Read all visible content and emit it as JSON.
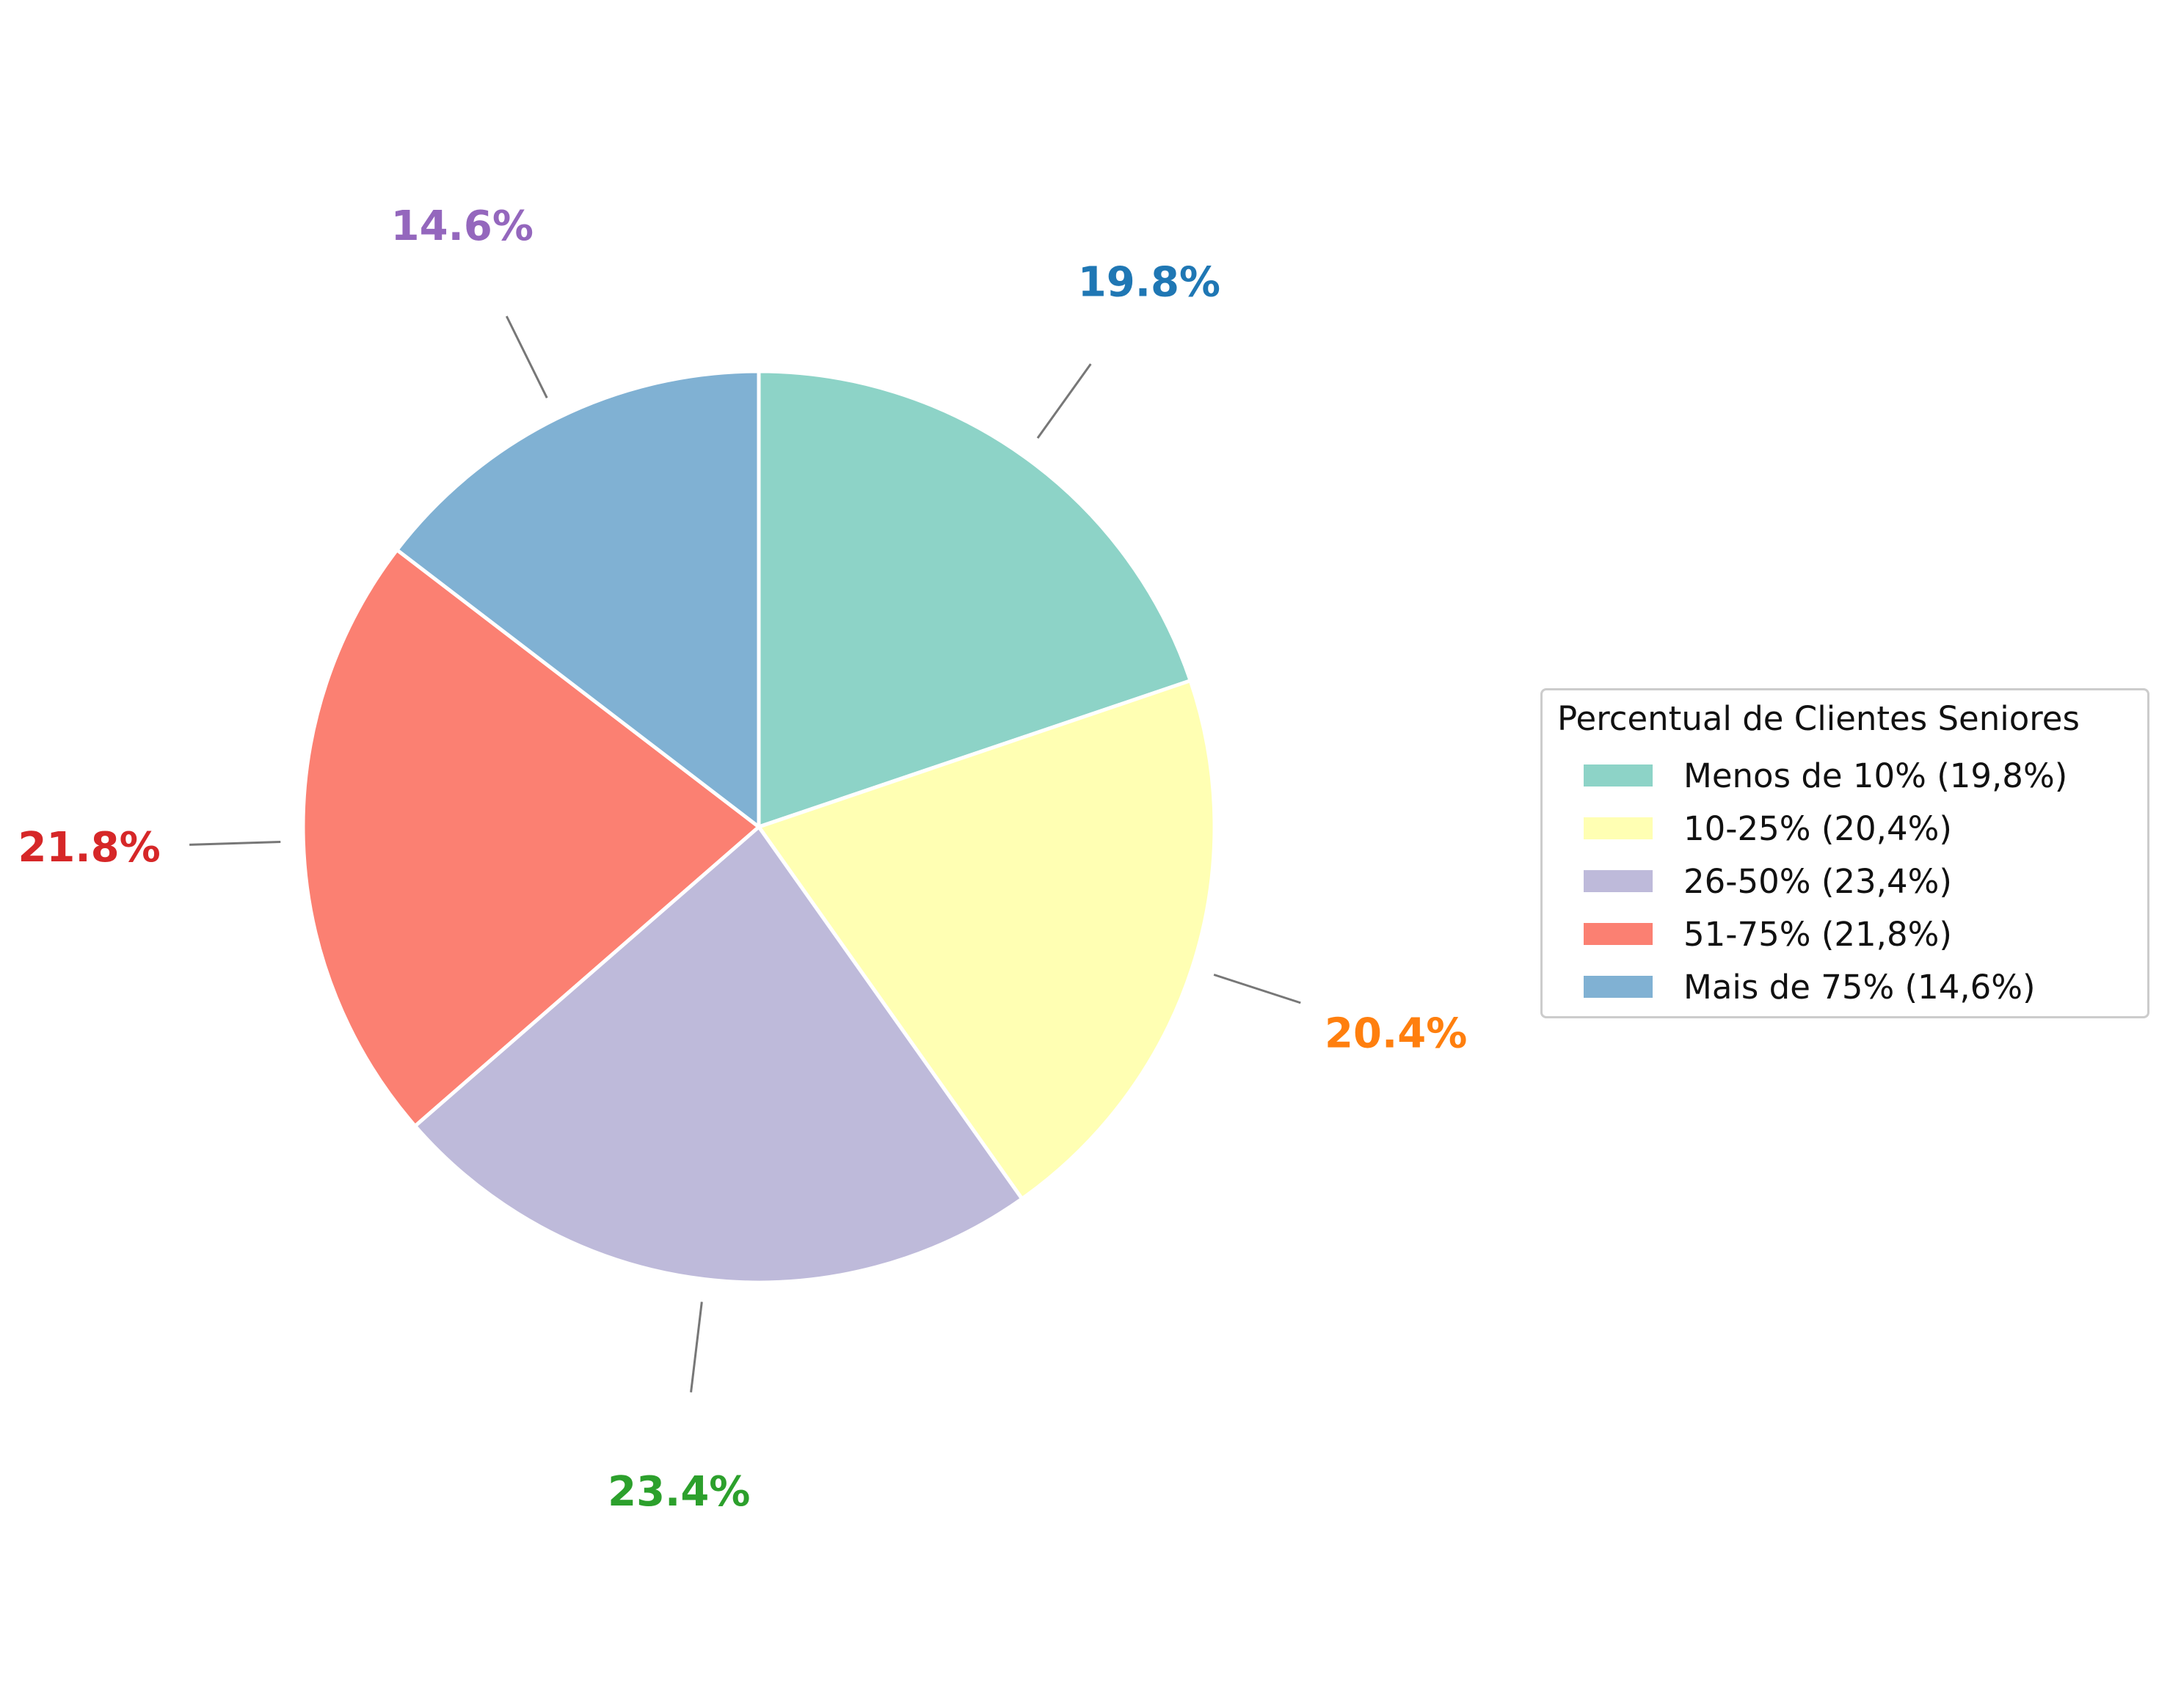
{
  "chart_data": {
    "type": "pie",
    "start_angle_deg": 90,
    "direction": "clockwise",
    "slices": [
      {
        "label": "Menos de 10%",
        "value": 19.8,
        "pct_label": "19.8%",
        "legend": "Menos de 10% (19,8%)",
        "color": "#8dd3c7",
        "label_color": "#1f77b4"
      },
      {
        "label": "10-25%",
        "value": 20.4,
        "pct_label": "20.4%",
        "legend": "10-25% (20,4%)",
        "color": "#ffffb3",
        "label_color": "#ff7f0e"
      },
      {
        "label": "26-50%",
        "value": 23.4,
        "pct_label": "23.4%",
        "legend": "26-50% (23,4%)",
        "color": "#bebada",
        "label_color": "#2ca02c"
      },
      {
        "label": "51-75%",
        "value": 21.8,
        "pct_label": "21.8%",
        "legend": "51-75% (21,8%)",
        "color": "#fb8072",
        "label_color": "#d62728"
      },
      {
        "label": "Mais de 75%",
        "value": 14.6,
        "pct_label": "14.6%",
        "legend": "Mais de 75% (14,6%)",
        "color": "#80b1d3",
        "label_color": "#9467bd"
      }
    ],
    "legend": {
      "title": "Percentual de Clientes Seniores",
      "placement": "right"
    }
  }
}
